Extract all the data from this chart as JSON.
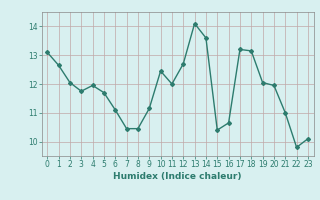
{
  "x": [
    0,
    1,
    2,
    3,
    4,
    5,
    6,
    7,
    8,
    9,
    10,
    11,
    12,
    13,
    14,
    15,
    16,
    17,
    18,
    19,
    20,
    21,
    22,
    23
  ],
  "y": [
    13.1,
    12.65,
    12.05,
    11.75,
    11.95,
    11.7,
    11.1,
    10.45,
    10.45,
    11.15,
    12.45,
    12.0,
    12.7,
    14.1,
    13.6,
    10.4,
    10.65,
    13.2,
    13.15,
    12.05,
    11.95,
    11.0,
    9.8,
    10.1
  ],
  "xlabel": "Humidex (Indice chaleur)",
  "ylim": [
    9.5,
    14.5
  ],
  "xlim": [
    -0.5,
    23.5
  ],
  "yticks": [
    10,
    11,
    12,
    13,
    14
  ],
  "xticks": [
    0,
    1,
    2,
    3,
    4,
    5,
    6,
    7,
    8,
    9,
    10,
    11,
    12,
    13,
    14,
    15,
    16,
    17,
    18,
    19,
    20,
    21,
    22,
    23
  ],
  "line_color": "#2d7c6e",
  "bg_color": "#d8f0f0",
  "grid_color": "#c0a8a8",
  "marker": "D",
  "marker_size": 2.0,
  "line_width": 1.0,
  "tick_fontsize": 5.5,
  "xlabel_fontsize": 6.5
}
